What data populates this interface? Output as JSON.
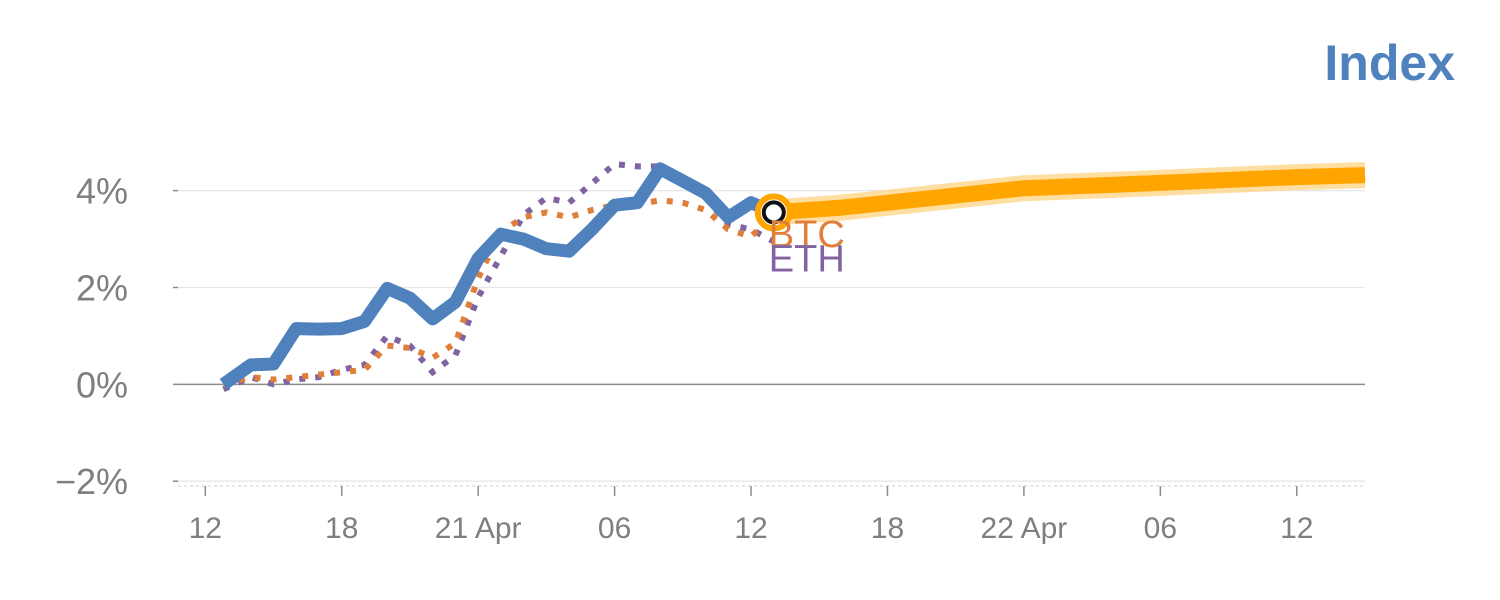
{
  "colors": {
    "index": "#4f81bd",
    "btc": "#e07f3a",
    "eth": "#8064a2",
    "forecast": "#ffa500",
    "forecast_halo": "#ffd68a",
    "grid": "#e6e6e6",
    "zero_line": "#8c8c8c",
    "text": "#7f7f7f"
  },
  "chart_data": {
    "type": "line",
    "title": "Index",
    "xlabel": "",
    "ylabel": "",
    "ylim": [
      -2.1,
      5.5
    ],
    "xlim": [
      -0.6,
      25.5
    ],
    "grid": true,
    "legend": "none",
    "y_ticks": [
      {
        "value": -2,
        "label": "−2%"
      },
      {
        "value": 0,
        "label": "0%"
      },
      {
        "value": 2,
        "label": "2%"
      },
      {
        "value": 4,
        "label": "4%"
      }
    ],
    "x_ticks": [
      {
        "value": 0,
        "label": "12"
      },
      {
        "value": 3,
        "label": "18"
      },
      {
        "value": 6,
        "label": "21 Apr"
      },
      {
        "value": 9,
        "label": "06"
      },
      {
        "value": 12,
        "label": "12"
      },
      {
        "value": 15,
        "label": "18"
      },
      {
        "value": 18,
        "label": "22 Apr"
      },
      {
        "value": 21,
        "label": "06"
      },
      {
        "value": 24,
        "label": "12"
      }
    ],
    "series": [
      {
        "key": "index",
        "x": [
          0.4,
          1.0,
          1.5,
          2.0,
          2.5,
          3.0,
          3.5,
          4.0,
          4.5,
          5.0,
          5.5,
          6.0,
          6.5,
          7.0,
          7.5,
          8.0,
          8.5,
          9.0,
          9.5,
          10.0,
          10.5,
          11.0,
          11.5,
          12.0,
          12.5
        ],
        "y": [
          0.0,
          0.4,
          0.42,
          1.15,
          1.14,
          1.15,
          1.3,
          1.98,
          1.78,
          1.35,
          1.7,
          2.6,
          3.1,
          3.0,
          2.8,
          2.75,
          3.2,
          3.7,
          3.75,
          4.45,
          4.2,
          3.95,
          3.45,
          3.75,
          3.55
        ]
      },
      {
        "key": "btc",
        "label": "BTC",
        "x": [
          0.4,
          1.0,
          1.5,
          2.0,
          2.5,
          3.0,
          3.5,
          4.0,
          4.5,
          5.0,
          5.5,
          6.0,
          6.5,
          7.0,
          7.5,
          8.0,
          8.5,
          9.0,
          9.5,
          10.0,
          10.5,
          11.0,
          11.5,
          12.0,
          12.5
        ],
        "y": [
          0.0,
          0.15,
          0.1,
          0.15,
          0.2,
          0.25,
          0.3,
          0.8,
          0.75,
          0.55,
          0.85,
          2.2,
          3.15,
          3.45,
          3.55,
          3.45,
          3.6,
          3.7,
          3.72,
          3.8,
          3.75,
          3.6,
          3.2,
          3.05,
          3.5
        ]
      },
      {
        "key": "eth",
        "label": "ETH",
        "x": [
          0.4,
          1.0,
          1.5,
          2.0,
          2.5,
          3.0,
          3.5,
          4.0,
          4.5,
          5.0,
          5.5,
          6.0,
          6.5,
          7.0,
          7.5,
          8.0,
          8.5,
          9.0,
          9.5,
          10.0,
          10.5,
          11.0,
          11.5,
          12.0,
          12.5
        ],
        "y": [
          -0.1,
          0.15,
          0.0,
          0.1,
          0.15,
          0.3,
          0.4,
          1.0,
          0.8,
          0.25,
          0.6,
          1.8,
          2.65,
          3.5,
          3.85,
          3.75,
          4.15,
          4.55,
          4.5,
          4.5,
          4.2,
          3.85,
          3.3,
          3.2,
          2.95
        ]
      },
      {
        "key": "forecast",
        "x": [
          12.5,
          14.0,
          16.0,
          18.0,
          20.0,
          22.0,
          24.0,
          25.5
        ],
        "y": [
          3.55,
          3.65,
          3.85,
          4.05,
          4.12,
          4.2,
          4.28,
          4.32
        ]
      }
    ],
    "current_point": {
      "x": 12.5,
      "y": 3.55
    }
  }
}
